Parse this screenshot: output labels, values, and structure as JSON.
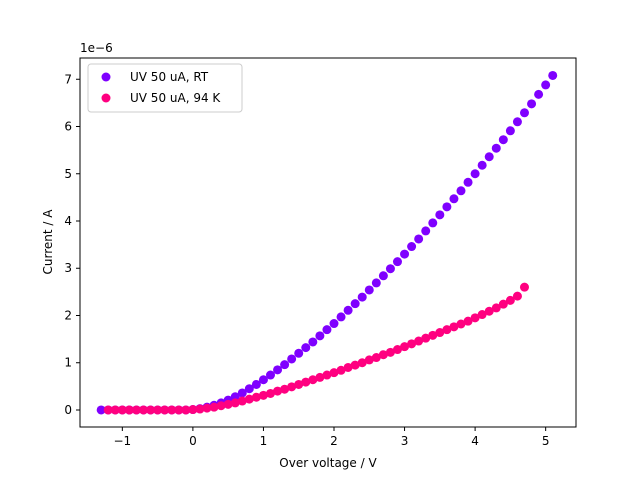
{
  "chart_data": {
    "type": "scatter",
    "xlabel": "Over voltage / V",
    "ylabel": "Current / A",
    "y_offset_label": "1e−6",
    "xlim": [
      -1.6,
      5.43
    ],
    "ylim": [
      -0.36,
      7.45
    ],
    "y_scale_note": "values in units of 1e-6 A",
    "x_ticks": [
      -1,
      0,
      1,
      2,
      3,
      4,
      5
    ],
    "x_tick_labels": [
      "−1",
      "0",
      "1",
      "2",
      "3",
      "4",
      "5"
    ],
    "y_ticks": [
      0,
      1,
      2,
      3,
      4,
      5,
      6,
      7
    ],
    "y_tick_labels": [
      "0",
      "1",
      "2",
      "3",
      "4",
      "5",
      "6",
      "7"
    ],
    "grid": false,
    "legend_position": "top-left",
    "series": [
      {
        "name": "UV 50 uA, RT",
        "color": "#7f00ff",
        "x": [
          -1.3,
          -1.2,
          -1.1,
          -1.0,
          -0.9,
          -0.8,
          -0.7,
          -0.6,
          -0.5,
          -0.4,
          -0.3,
          -0.2,
          -0.1,
          0.0,
          0.1,
          0.2,
          0.3,
          0.4,
          0.5,
          0.6,
          0.7,
          0.8,
          0.9,
          1.0,
          1.1,
          1.2,
          1.3,
          1.4,
          1.5,
          1.6,
          1.7,
          1.8,
          1.9,
          2.0,
          2.1,
          2.2,
          2.3,
          2.4,
          2.5,
          2.6,
          2.7,
          2.8,
          2.9,
          3.0,
          3.1,
          3.2,
          3.3,
          3.4,
          3.5,
          3.6,
          3.7,
          3.8,
          3.9,
          4.0,
          4.1,
          4.2,
          4.3,
          4.4,
          4.5,
          4.6,
          4.7,
          4.8,
          4.9,
          5.0,
          5.1
        ],
        "y": [
          0,
          0,
          0,
          0,
          0,
          0,
          0,
          0,
          0,
          0,
          0,
          0,
          0,
          0.01,
          0.03,
          0.06,
          0.1,
          0.15,
          0.21,
          0.28,
          0.36,
          0.45,
          0.54,
          0.64,
          0.74,
          0.85,
          0.96,
          1.08,
          1.2,
          1.32,
          1.44,
          1.57,
          1.7,
          1.83,
          1.97,
          2.11,
          2.25,
          2.39,
          2.54,
          2.69,
          2.84,
          2.99,
          3.14,
          3.3,
          3.46,
          3.62,
          3.79,
          3.96,
          4.13,
          4.3,
          4.47,
          4.64,
          4.82,
          5.0,
          5.18,
          5.36,
          5.54,
          5.72,
          5.91,
          6.1,
          6.29,
          6.48,
          6.68,
          6.88,
          7.08
        ]
      },
      {
        "name": "UV 50 uA, 94 K",
        "color": "#ff0080",
        "x": [
          -1.2,
          -1.1,
          -1.0,
          -0.9,
          -0.8,
          -0.7,
          -0.6,
          -0.5,
          -0.4,
          -0.3,
          -0.2,
          -0.1,
          0.0,
          0.1,
          0.2,
          0.3,
          0.4,
          0.5,
          0.6,
          0.7,
          0.8,
          0.9,
          1.0,
          1.1,
          1.2,
          1.3,
          1.4,
          1.5,
          1.6,
          1.7,
          1.8,
          1.9,
          2.0,
          2.1,
          2.2,
          2.3,
          2.4,
          2.5,
          2.6,
          2.7,
          2.8,
          2.9,
          3.0,
          3.1,
          3.2,
          3.3,
          3.4,
          3.5,
          3.6,
          3.7,
          3.8,
          3.9,
          4.0,
          4.1,
          4.2,
          4.3,
          4.4,
          4.5,
          4.6,
          4.7
        ],
        "y": [
          0,
          0,
          0,
          0,
          0,
          0,
          0,
          0,
          0,
          0,
          0,
          0,
          0.01,
          0.02,
          0.04,
          0.06,
          0.09,
          0.12,
          0.15,
          0.19,
          0.23,
          0.27,
          0.31,
          0.35,
          0.4,
          0.44,
          0.49,
          0.54,
          0.59,
          0.64,
          0.69,
          0.74,
          0.79,
          0.84,
          0.9,
          0.95,
          1.0,
          1.06,
          1.11,
          1.17,
          1.22,
          1.28,
          1.34,
          1.4,
          1.46,
          1.52,
          1.58,
          1.64,
          1.7,
          1.76,
          1.82,
          1.88,
          1.95,
          2.02,
          2.09,
          2.16,
          2.24,
          2.32,
          2.41,
          2.6
        ]
      }
    ]
  }
}
